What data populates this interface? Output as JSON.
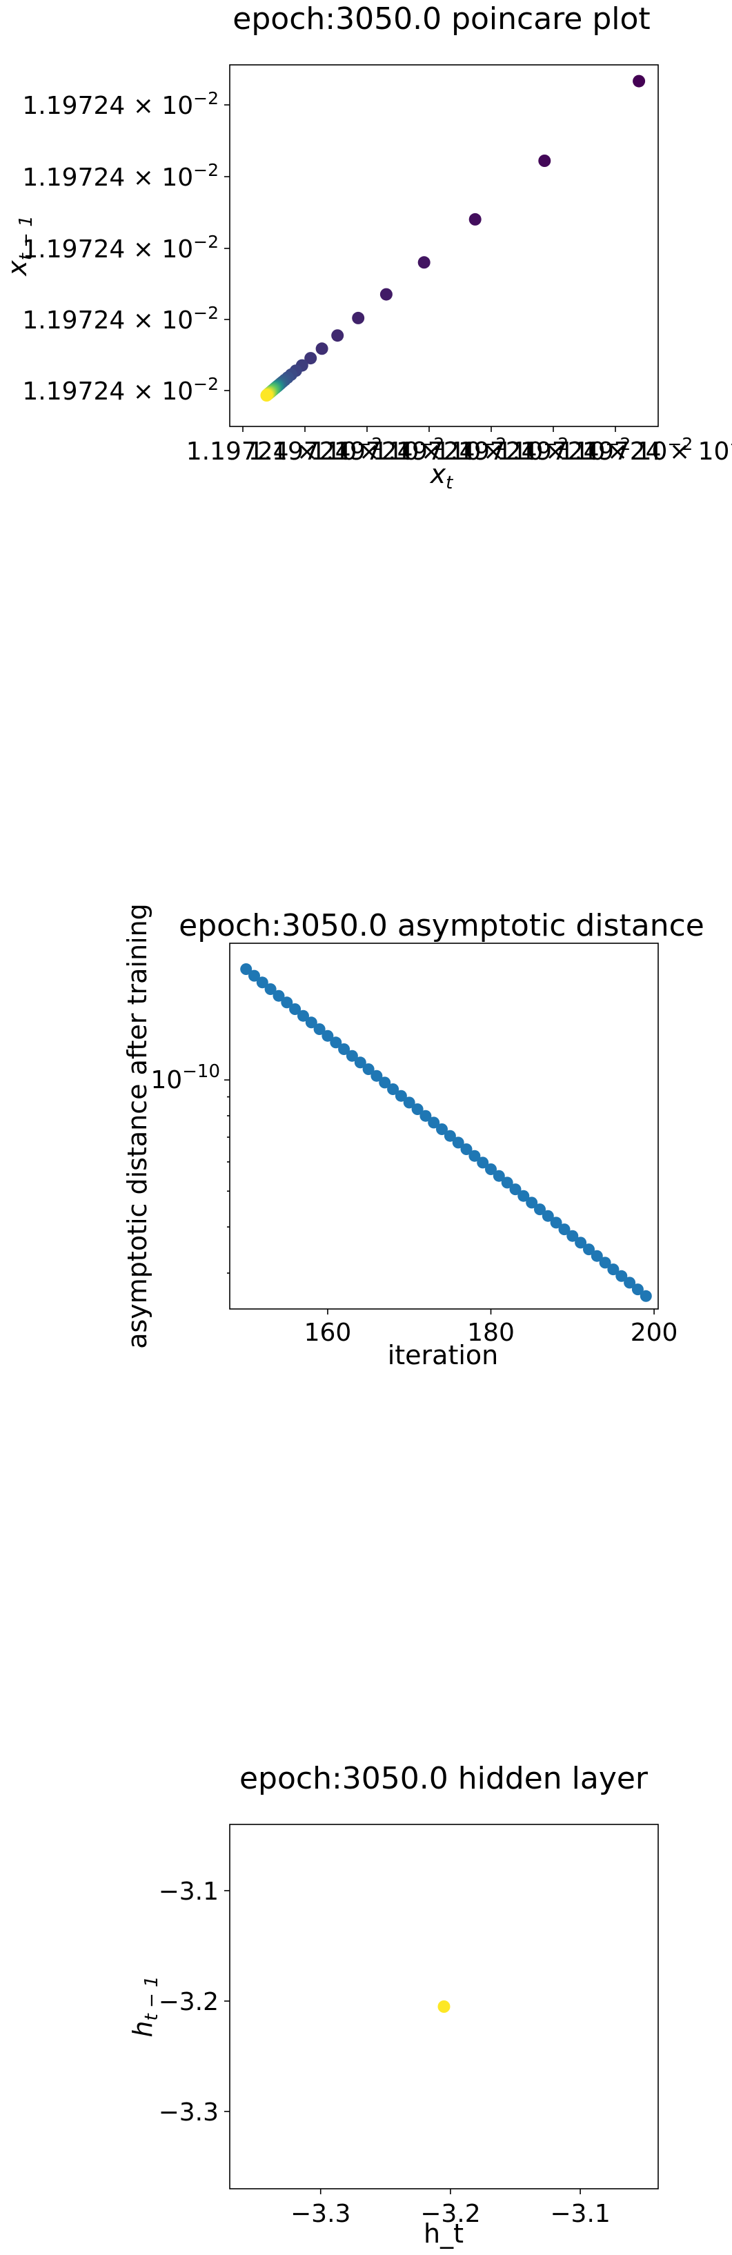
{
  "chart_data": [
    {
      "type": "scatter",
      "title": "epoch:3050.0 poincare plot",
      "xlabel": "x",
      "xlabel_sub": "t",
      "ylabel": "x",
      "ylabel_sub": "t − 1",
      "colormap": "viridis",
      "y_tick_labels": [
        {
          "mantissa": "1.19724",
          "mult": " × 10",
          "exp": "−2"
        },
        {
          "mantissa": "1.19724",
          "mult": " × 10",
          "exp": "−2"
        },
        {
          "mantissa": "1.19724",
          "mult": " × 10",
          "exp": "−2"
        },
        {
          "mantissa": "1.19724",
          "mult": " × 10",
          "exp": "−2"
        },
        {
          "mantissa": "1.19724",
          "mult": " × 10",
          "exp": "−2"
        }
      ],
      "x_tick_labels": [
        {
          "mantissa": "1.19724",
          "mult": " × 10",
          "exp": "−2"
        },
        {
          "mantissa": "1.19724",
          "mult": " × 10",
          "exp": "−2"
        },
        {
          "mantissa": "1.19724",
          "mult": " × 10",
          "exp": "−2"
        },
        {
          "mantissa": "1.19724",
          "mult": " × 10",
          "exp": "−2"
        },
        {
          "mantissa": "1.19724",
          "mult": " × 10",
          "exp": "−2"
        },
        {
          "mantissa": "1.19724",
          "mult": " × 10",
          "exp": "−2"
        },
        {
          "mantissa": "1.19724",
          "mult": " × 10",
          "exp": "−2"
        }
      ],
      "points_relative": [
        [
          1.0,
          1.0
        ],
        [
          0.758,
          0.758
        ],
        [
          0.58,
          0.58
        ],
        [
          0.449,
          0.449
        ],
        [
          0.352,
          0.352
        ],
        [
          0.28,
          0.28
        ],
        [
          0.227,
          0.227
        ],
        [
          0.187,
          0.187
        ],
        [
          0.158,
          0.158
        ],
        [
          0.136,
          0.136
        ],
        [
          0.12,
          0.12
        ],
        [
          0.108,
          0.108
        ],
        [
          0.099,
          0.099
        ],
        [
          0.092,
          0.092
        ],
        [
          0.087,
          0.087
        ],
        [
          0.083,
          0.083
        ],
        [
          0.08,
          0.08
        ],
        [
          0.078,
          0.078
        ],
        [
          0.076,
          0.076
        ],
        [
          0.075,
          0.075
        ],
        [
          0.074,
          0.074
        ],
        [
          0.073,
          0.073
        ],
        [
          0.072,
          0.072
        ],
        [
          0.071,
          0.071
        ],
        [
          0.07,
          0.07
        ],
        [
          0.069,
          0.069
        ],
        [
          0.068,
          0.068
        ],
        [
          0.067,
          0.067
        ],
        [
          0.066,
          0.066
        ],
        [
          0.065,
          0.065
        ],
        [
          0.064,
          0.064
        ],
        [
          0.063,
          0.063
        ],
        [
          0.062,
          0.062
        ],
        [
          0.061,
          0.061
        ],
        [
          0.06,
          0.06
        ],
        [
          0.059,
          0.059
        ],
        [
          0.058,
          0.058
        ],
        [
          0.057,
          0.057
        ],
        [
          0.056,
          0.056
        ],
        [
          0.055,
          0.055
        ],
        [
          0.054,
          0.054
        ],
        [
          0.053,
          0.053
        ],
        [
          0.052,
          0.052
        ],
        [
          0.051,
          0.051
        ],
        [
          0.05,
          0.05
        ],
        [
          0.049,
          0.049
        ],
        [
          0.048,
          0.048
        ],
        [
          0.047,
          0.047
        ],
        [
          0.046,
          0.046
        ],
        [
          0.045,
          0.045
        ]
      ]
    },
    {
      "type": "scatter",
      "title": "epoch:3050.0 asymptotic distance",
      "xlabel": "iteration",
      "ylabel": "asymptotic distance after training",
      "yscale": "log",
      "color": "#1f77b4",
      "xlim": [
        148,
        200.5
      ],
      "x_ticks": [
        160,
        180,
        200
      ],
      "y_tick_labels": [
        {
          "base": "10",
          "exp": "−10"
        }
      ],
      "log10_range": [
        -10.62,
        -9.63
      ],
      "x": [
        150,
        151,
        152,
        153,
        154,
        155,
        156,
        157,
        158,
        159,
        160,
        161,
        162,
        163,
        164,
        165,
        166,
        167,
        168,
        169,
        170,
        171,
        172,
        173,
        174,
        175,
        176,
        177,
        178,
        179,
        180,
        181,
        182,
        183,
        184,
        185,
        186,
        187,
        188,
        189,
        190,
        191,
        192,
        193,
        194,
        195,
        196,
        197,
        198,
        199
      ],
      "log10_y_start": -9.7,
      "log10_y_end": -10.585
    },
    {
      "type": "scatter",
      "title": "epoch:3050.0 hidden layer",
      "xlabel": "h_t",
      "ylabel": "h",
      "ylabel_sub": "t − 1",
      "color": "#fde725",
      "xlim": [
        -3.37,
        -3.04
      ],
      "ylim": [
        -3.37,
        -3.04
      ],
      "x_ticks": [
        -3.3,
        -3.2,
        -3.1
      ],
      "y_ticks": [
        -3.3,
        -3.2,
        -3.1
      ],
      "x_tick_labels": [
        "−3.3",
        "−3.2",
        "−3.1"
      ],
      "y_tick_labels": [
        "−3.3",
        "−3.2",
        "−3.1"
      ],
      "points": [
        [
          -3.205,
          -3.205
        ]
      ]
    }
  ]
}
